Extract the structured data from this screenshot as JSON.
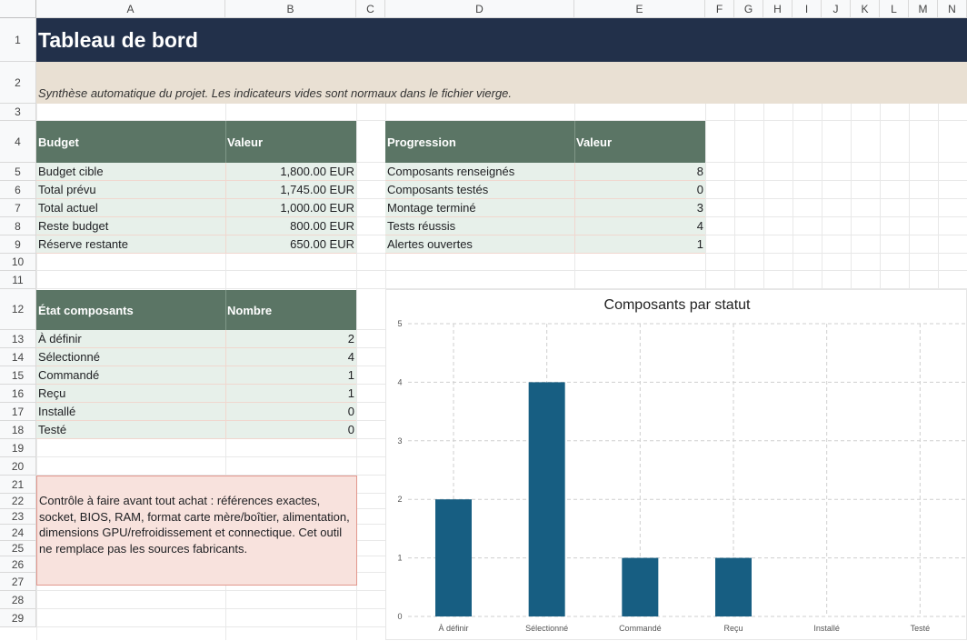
{
  "sheet": {
    "columns": [
      "A",
      "B",
      "C",
      "D",
      "E",
      "F",
      "G",
      "H",
      "I",
      "J",
      "K",
      "L",
      "M",
      "N"
    ],
    "rows": [
      "1",
      "2",
      "3",
      "4",
      "5",
      "6",
      "7",
      "8",
      "9",
      "10",
      "11",
      "12",
      "13",
      "14",
      "15",
      "16",
      "17",
      "18",
      "19",
      "20",
      "21",
      "22",
      "23",
      "24",
      "25",
      "26",
      "27",
      "28",
      "29"
    ]
  },
  "title": "Tableau de bord",
  "subtitle": "Synthèse automatique du projet. Les indicateurs vides sont normaux dans le fichier vierge.",
  "budget": {
    "header_label": "Budget",
    "header_value": "Valeur",
    "rows": [
      {
        "label": "Budget cible",
        "value": "1,800.00 EUR"
      },
      {
        "label": "Total prévu",
        "value": "1,745.00 EUR"
      },
      {
        "label": "Total actuel",
        "value": "1,000.00 EUR"
      },
      {
        "label": "Reste budget",
        "value": "800.00 EUR"
      },
      {
        "label": "Réserve restante",
        "value": "650.00 EUR"
      }
    ]
  },
  "progression": {
    "header_label": "Progression",
    "header_value": "Valeur",
    "rows": [
      {
        "label": "Composants renseignés",
        "value": "8"
      },
      {
        "label": "Composants testés",
        "value": "0"
      },
      {
        "label": "Montage terminé",
        "value": "3"
      },
      {
        "label": "Tests réussis",
        "value": "4"
      },
      {
        "label": "Alertes ouvertes",
        "value": "1"
      }
    ]
  },
  "etat": {
    "header_label": "État composants",
    "header_value": "Nombre",
    "rows": [
      {
        "label": "À définir",
        "value": "2"
      },
      {
        "label": "Sélectionné",
        "value": "4"
      },
      {
        "label": "Commandé",
        "value": "1"
      },
      {
        "label": "Reçu",
        "value": "1"
      },
      {
        "label": "Installé",
        "value": "0"
      },
      {
        "label": "Testé",
        "value": "0"
      }
    ]
  },
  "note": "Contrôle à faire avant tout achat : références exactes, socket, BIOS, RAM, format carte mère/boîtier, alimentation, dimensions GPU/refroidissement et connectique. Cet outil ne remplace pas les sources fabricants.",
  "colors": {
    "title_band": "#22304a",
    "subtitle_band": "#e9e0d3",
    "table_header": "#5b7565",
    "table_row": "#e7f0ea",
    "note_fill": "#f8e2dd",
    "note_border": "#e2978d",
    "bar": "#175e82"
  },
  "chart_data": {
    "type": "bar",
    "title": "Composants par statut",
    "categories": [
      "À définir",
      "Sélectionné",
      "Commandé",
      "Reçu",
      "Installé",
      "Testé"
    ],
    "values": [
      2,
      4,
      1,
      1,
      0,
      0
    ],
    "ylim": [
      0,
      5
    ],
    "yticks": [
      "0",
      "1",
      "2",
      "3",
      "4",
      "5"
    ],
    "grid": true,
    "xlabel": "",
    "ylabel": ""
  }
}
